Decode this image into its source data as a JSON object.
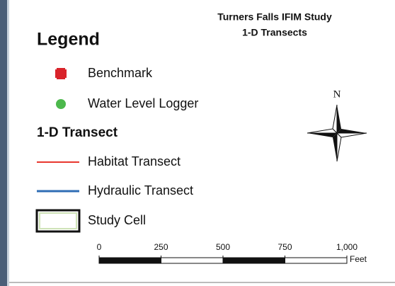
{
  "title": [
    "Turners Falls IFIM Study",
    "1-D Transects"
  ],
  "legend": {
    "heading": "Legend",
    "points": [
      {
        "label": "Benchmark",
        "color": "#d9232a"
      },
      {
        "label": "Water Level Logger",
        "color": "#4cb84c"
      }
    ],
    "section": "1-D Transect",
    "lines": [
      {
        "label": "Habitat Transect",
        "color": "#e8382e"
      },
      {
        "label": "Hydraulic Transect",
        "color": "#2f6db5"
      }
    ],
    "area": {
      "label": "Study Cell"
    }
  },
  "north": "N",
  "scale_bar": {
    "ticks": [
      0,
      250,
      500,
      750,
      {
        "value": 1000,
        "label": "1,000"
      }
    ],
    "unit": "Feet"
  }
}
